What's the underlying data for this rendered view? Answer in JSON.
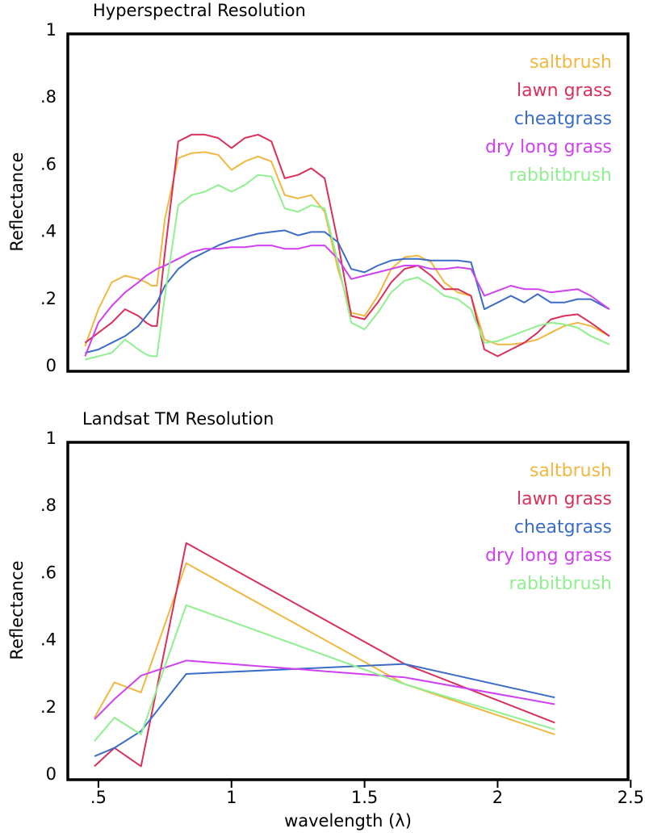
{
  "chart_data": [
    {
      "type": "line",
      "title": "Hyperspectral Resolution",
      "y_label": "Reflectance",
      "x": [
        0.45,
        0.5,
        0.55,
        0.6,
        0.65,
        0.68,
        0.7,
        0.72,
        0.75,
        0.8,
        0.85,
        0.9,
        0.95,
        1.0,
        1.05,
        1.1,
        1.15,
        1.2,
        1.25,
        1.3,
        1.35,
        1.4,
        1.45,
        1.5,
        1.55,
        1.6,
        1.65,
        1.7,
        1.75,
        1.8,
        1.85,
        1.9,
        1.95,
        2.0,
        2.05,
        2.1,
        2.15,
        2.2,
        2.25,
        2.3,
        2.35,
        2.42
      ],
      "series": [
        {
          "name": "saltbrush",
          "color": "#f0b840",
          "values": [
            0.07,
            0.18,
            0.26,
            0.28,
            0.27,
            0.26,
            0.25,
            0.25,
            0.45,
            0.63,
            0.645,
            0.648,
            0.64,
            0.595,
            0.62,
            0.635,
            0.62,
            0.52,
            0.51,
            0.52,
            0.47,
            0.3,
            0.17,
            0.16,
            0.22,
            0.3,
            0.335,
            0.34,
            0.32,
            0.26,
            0.23,
            0.22,
            0.09,
            0.075,
            0.075,
            0.08,
            0.09,
            0.11,
            0.13,
            0.14,
            0.13,
            0.1
          ]
        },
        {
          "name": "lawn grass",
          "color": "#d9305a",
          "values": [
            0.08,
            0.11,
            0.14,
            0.18,
            0.16,
            0.14,
            0.13,
            0.13,
            0.35,
            0.68,
            0.7,
            0.7,
            0.69,
            0.66,
            0.69,
            0.7,
            0.68,
            0.57,
            0.58,
            0.6,
            0.57,
            0.38,
            0.16,
            0.15,
            0.2,
            0.26,
            0.3,
            0.31,
            0.28,
            0.24,
            0.24,
            0.22,
            0.06,
            0.04,
            0.06,
            0.08,
            0.11,
            0.15,
            0.16,
            0.165,
            0.14,
            0.1
          ]
        },
        {
          "name": "cheatgrass",
          "color": "#3a6cc8",
          "values": [
            0.05,
            0.06,
            0.08,
            0.1,
            0.13,
            0.16,
            0.18,
            0.2,
            0.25,
            0.3,
            0.33,
            0.35,
            0.37,
            0.385,
            0.395,
            0.405,
            0.41,
            0.415,
            0.4,
            0.41,
            0.41,
            0.38,
            0.3,
            0.29,
            0.31,
            0.325,
            0.33,
            0.33,
            0.325,
            0.325,
            0.325,
            0.32,
            0.18,
            0.2,
            0.22,
            0.2,
            0.225,
            0.2,
            0.2,
            0.21,
            0.21,
            0.18
          ]
        },
        {
          "name": "dry long grass",
          "color": "#d040f0",
          "values": [
            0.04,
            0.14,
            0.19,
            0.23,
            0.26,
            0.28,
            0.29,
            0.3,
            0.31,
            0.33,
            0.35,
            0.36,
            0.36,
            0.365,
            0.365,
            0.37,
            0.37,
            0.36,
            0.36,
            0.37,
            0.37,
            0.33,
            0.27,
            0.28,
            0.29,
            0.3,
            0.31,
            0.31,
            0.3,
            0.3,
            0.305,
            0.3,
            0.22,
            0.235,
            0.25,
            0.24,
            0.24,
            0.23,
            0.235,
            0.24,
            0.22,
            0.18
          ]
        },
        {
          "name": "rabbitbrush",
          "color": "#90f090",
          "values": [
            0.03,
            0.04,
            0.05,
            0.09,
            0.06,
            0.045,
            0.04,
            0.04,
            0.22,
            0.49,
            0.52,
            0.53,
            0.55,
            0.53,
            0.55,
            0.58,
            0.575,
            0.48,
            0.47,
            0.49,
            0.48,
            0.32,
            0.14,
            0.12,
            0.17,
            0.23,
            0.265,
            0.275,
            0.25,
            0.22,
            0.21,
            0.18,
            0.08,
            0.085,
            0.1,
            0.115,
            0.13,
            0.14,
            0.135,
            0.125,
            0.1,
            0.075
          ]
        }
      ],
      "xlim": [
        0.385,
        2.49
      ],
      "ylim": [
        0,
        1
      ],
      "yticks": [
        0,
        {
          "value": 0.2,
          "label": ".2"
        },
        {
          "value": 0.4,
          "label": ".4"
        },
        {
          "value": 0.6,
          "label": ".6"
        },
        {
          "value": 0.8,
          "label": ".8"
        },
        1
      ],
      "legend": "upper right"
    },
    {
      "type": "line",
      "title": "Landsat TM Resolution",
      "y_label": "Reflectance",
      "x_label": "wavelength (λ)",
      "x": [
        0.485,
        0.56,
        0.66,
        0.83,
        1.65,
        2.215
      ],
      "series": [
        {
          "name": "saltbrush",
          "color": "#f0b840",
          "values": [
            0.18,
            0.285,
            0.255,
            0.64,
            0.28,
            0.13
          ]
        },
        {
          "name": "lawn grass",
          "color": "#d9305a",
          "values": [
            0.035,
            0.09,
            0.035,
            0.7,
            0.34,
            0.165
          ]
        },
        {
          "name": "cheatgrass",
          "color": "#3a6cc8",
          "values": [
            0.065,
            0.09,
            0.14,
            0.31,
            0.34,
            0.24
          ]
        },
        {
          "name": "dry long grass",
          "color": "#d040f0",
          "values": [
            0.175,
            0.235,
            0.305,
            0.35,
            0.3,
            0.22
          ]
        },
        {
          "name": "rabbitbrush",
          "color": "#90f090",
          "values": [
            0.11,
            0.18,
            0.13,
            0.515,
            0.28,
            0.145
          ]
        }
      ],
      "xlim": [
        0.385,
        2.49
      ],
      "ylim": [
        0,
        1
      ],
      "xticks": [
        {
          "value": 0.5,
          "label": ".5"
        },
        1,
        1.5,
        2,
        2.5
      ],
      "yticks": [
        0,
        {
          "value": 0.2,
          "label": ".2"
        },
        {
          "value": 0.4,
          "label": ".4"
        },
        {
          "value": 0.6,
          "label": ".6"
        },
        {
          "value": 0.8,
          "label": ".8"
        },
        1
      ],
      "legend": "upper right"
    }
  ]
}
